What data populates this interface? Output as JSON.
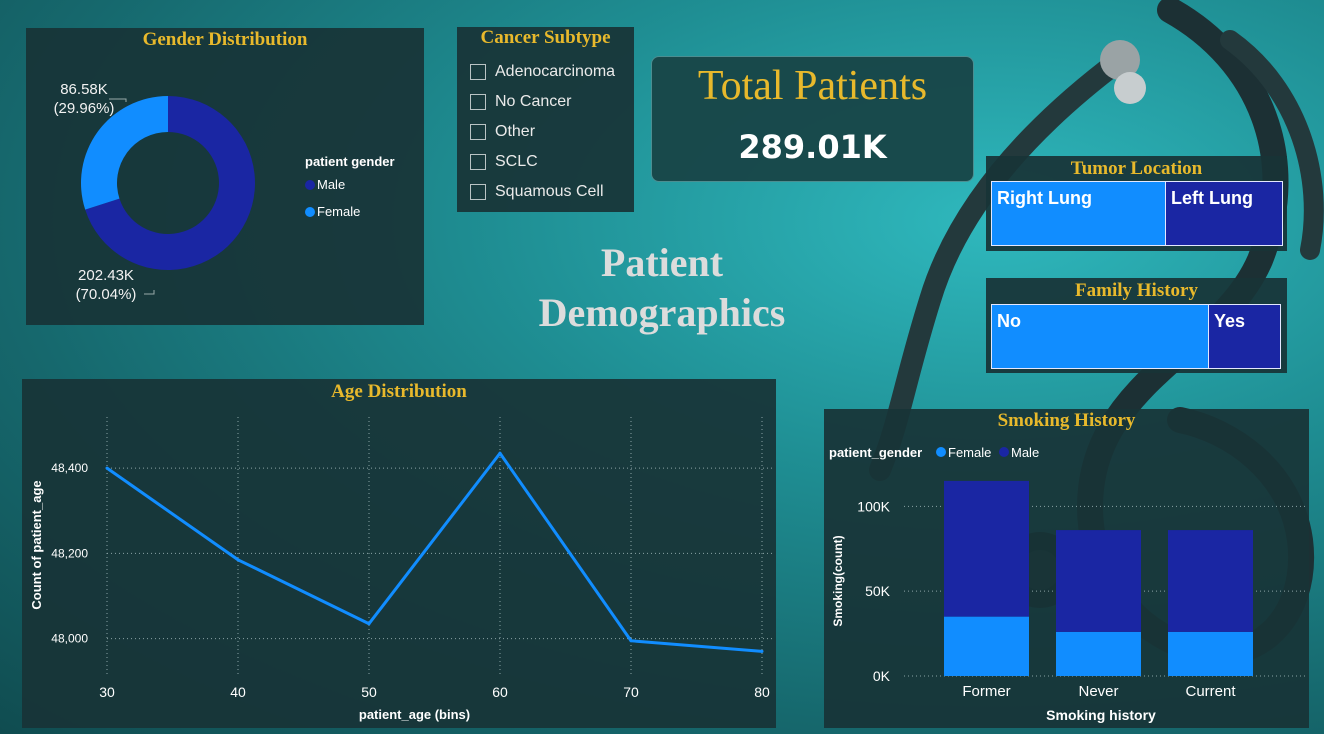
{
  "page_title_line1": "Patient",
  "page_title_line2": "Demographics",
  "total": {
    "title": "Total Patients",
    "value": "289.01K"
  },
  "gender": {
    "title": "Gender Distribution",
    "legend_title": "patient gender",
    "male_label": "Male",
    "female_label": "Female",
    "female_value": "86.58K",
    "female_pct": "(29.96%)",
    "male_value": "202.43K",
    "male_pct": "(70.04%)",
    "colors": {
      "male": "#1a26a3",
      "female": "#118dff"
    }
  },
  "subtype": {
    "title": "Cancer Subtype",
    "options": [
      "Adenocarcinoma",
      "No Cancer",
      "Other",
      "SCLC",
      "Squamous Cell"
    ]
  },
  "tumor": {
    "title": "Tumor Location",
    "right": "Right Lung",
    "left": "Left Lung"
  },
  "family": {
    "title": "Family History",
    "no": "No",
    "yes": "Yes"
  },
  "chart_data": [
    {
      "type": "pie",
      "title": "Gender Distribution",
      "series": [
        {
          "name": "Male",
          "value": 202430,
          "pct": 70.04
        },
        {
          "name": "Female",
          "value": 86580,
          "pct": 29.96
        }
      ]
    },
    {
      "type": "line",
      "title": "Age Distribution",
      "xlabel": "patient_age (bins)",
      "ylabel": "Count of patient_age",
      "x": [
        30,
        40,
        50,
        60,
        70,
        80
      ],
      "values": [
        48400,
        48185,
        48035,
        48435,
        47995,
        47970
      ],
      "ylim": [
        47910,
        48520
      ],
      "yticks": [
        48000,
        48200,
        48400
      ],
      "ytick_labels": [
        "48,000",
        "48,200",
        "48,400"
      ],
      "grid": true,
      "color": "#118dff"
    },
    {
      "type": "bar",
      "stacked": true,
      "title": "Smoking History",
      "xlabel": "Smoking history",
      "ylabel": "Smoking(count)",
      "legend_title": "patient_gender",
      "legend_position": "top-left",
      "categories": [
        "Former",
        "Never",
        "Current"
      ],
      "series": [
        {
          "name": "Female",
          "values": [
            35000,
            26000,
            26000
          ],
          "color": "#118dff"
        },
        {
          "name": "Male",
          "values": [
            80000,
            60000,
            60000
          ],
          "color": "#1a26a3"
        }
      ],
      "ylim": [
        0,
        122000
      ],
      "yticks": [
        0,
        50000,
        100000
      ],
      "ytick_labels": [
        "0K",
        "50K",
        "100K"
      ],
      "grid": true
    }
  ]
}
